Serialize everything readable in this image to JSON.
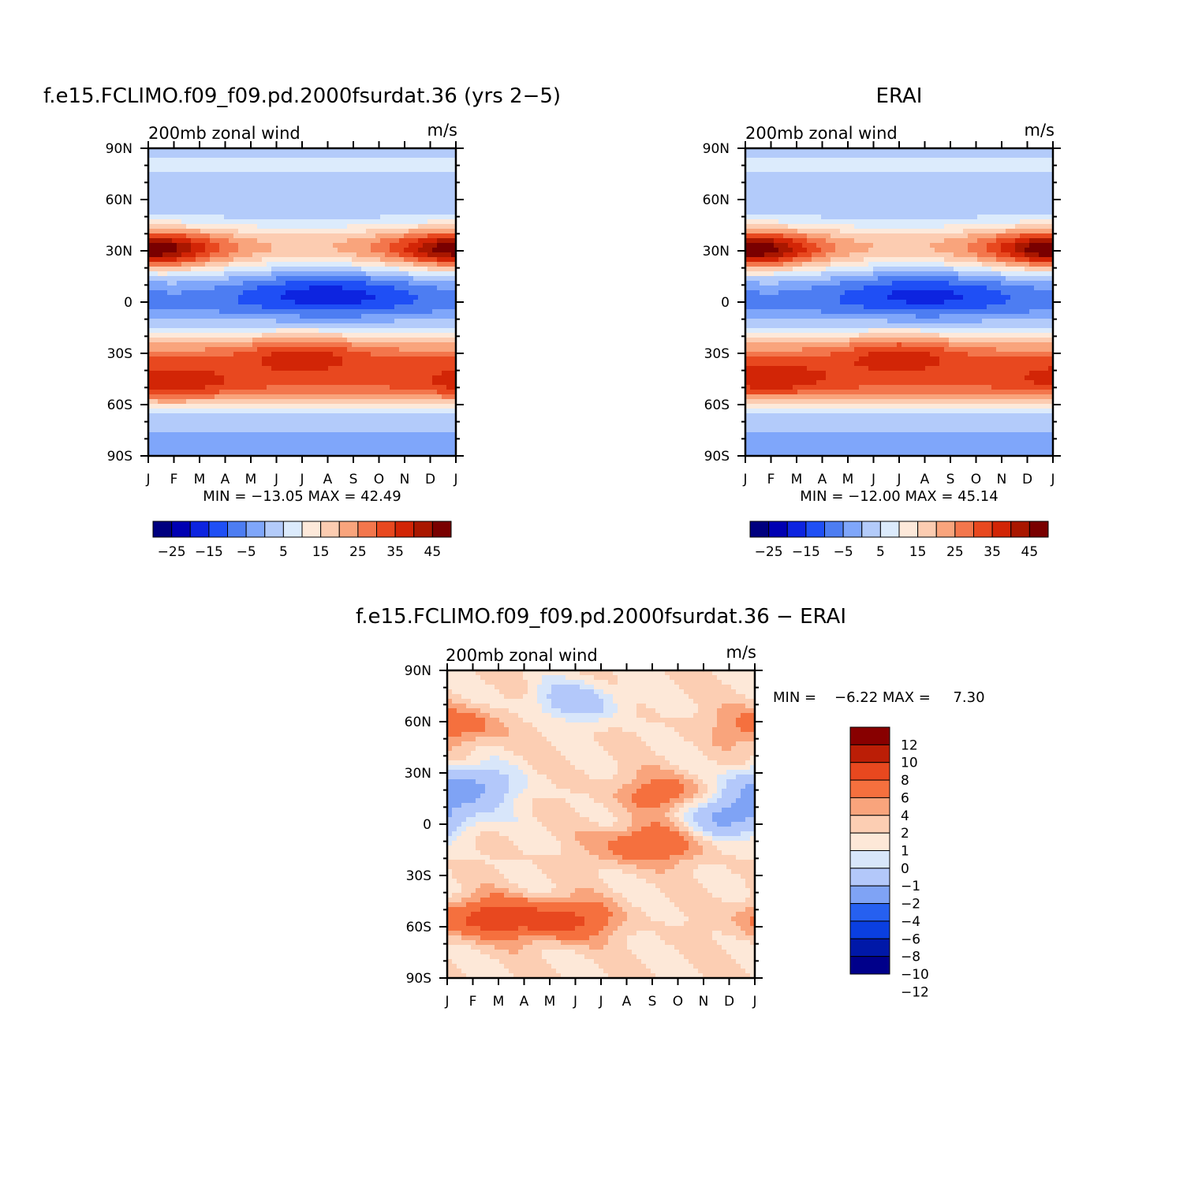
{
  "colors": {
    "abs_fill": [
      "#00007f",
      "#0000b2",
      "#0d24e0",
      "#1f4ff5",
      "#4d7df2",
      "#7fa6fa",
      "#b3cbfa",
      "#dcebfc",
      "#fde9da",
      "#fcccb1",
      "#f9a47c",
      "#f3764c",
      "#e8481f",
      "#d22506",
      "#a91700",
      "#790000"
    ],
    "diff_fill": [
      "#00008a",
      "#0018a8",
      "#0a3fe0",
      "#2660f0",
      "#7fa3f5",
      "#b3c8fa",
      "#d8e6fa",
      "#fde8d8",
      "#fcceb3",
      "#f9a47c",
      "#f5703e",
      "#e8481f",
      "#bb1e06",
      "#880000"
    ]
  },
  "panels": [
    {
      "id": "model",
      "title": "f.e15.FCLIMO.f09_f09.pd.2000fsurdat.36 (yrs 2−5)",
      "left_label": "200mb zonal wind",
      "right_label": "m/s",
      "stats": "MIN = −13.05 MAX =   42.49",
      "colorbar_labels": [
        "−25",
        "−15",
        "−5",
        "5",
        "15",
        "25",
        "35",
        "45"
      ]
    },
    {
      "id": "obs",
      "title": "ERAI",
      "left_label": "200mb zonal wind",
      "right_label": "m/s",
      "stats": "MIN = −12.00 MAX =   45.14",
      "colorbar_labels": [
        "−25",
        "−15",
        "−5",
        "5",
        "15",
        "25",
        "35",
        "45"
      ]
    },
    {
      "id": "diff",
      "title": "f.e15.FCLIMO.f09_f09.pd.2000fsurdat.36 − ERAI",
      "left_label": "200mb zonal wind",
      "right_label": "m/s",
      "stats": "MIN =    −6.22 MAX =     7.30",
      "colorbar_labels": [
        "12",
        "10",
        "8",
        "6",
        "4",
        "2",
        "1",
        "0",
        "−1",
        "−2",
        "−4",
        "−6",
        "−8",
        "−10",
        "−12"
      ]
    }
  ],
  "chart_data": [
    {
      "type": "heatmap",
      "title": "f.e15.FCLIMO.f09_f09.pd.2000fsurdat.36 (yrs 2−5)",
      "subtitle": "200mb zonal wind",
      "units": "m/s",
      "x_ticks": [
        "J",
        "F",
        "M",
        "A",
        "M",
        "J",
        "J",
        "A",
        "S",
        "O",
        "N",
        "D",
        "J"
      ],
      "y_ticks": [
        "90N",
        "60N",
        "30N",
        "0",
        "30S",
        "60S",
        "90S"
      ],
      "contour_levels": [
        -25,
        -20,
        -15,
        -10,
        -5,
        0,
        5,
        10,
        15,
        20,
        25,
        30,
        35,
        40,
        45
      ],
      "min": -13.05,
      "max": 42.49,
      "jets": [
        {
          "month": 0.3,
          "lat": 30,
          "speed": 40
        },
        {
          "month": 12.0,
          "lat": 31,
          "speed": 32
        },
        {
          "month": 6.0,
          "lat": -28,
          "speed": 37
        },
        {
          "month": 1.0,
          "lat": -50,
          "speed": 28
        }
      ],
      "equatorial_easterlies": {
        "month": 7.0,
        "lat": 6,
        "speed": -12
      },
      "grid": false
    },
    {
      "type": "heatmap",
      "title": "ERAI",
      "subtitle": "200mb zonal wind",
      "units": "m/s",
      "x_ticks": [
        "J",
        "F",
        "M",
        "A",
        "M",
        "J",
        "J",
        "A",
        "S",
        "O",
        "N",
        "D",
        "J"
      ],
      "y_ticks": [
        "90N",
        "60N",
        "30N",
        "0",
        "30S",
        "60S",
        "90S"
      ],
      "contour_levels": [
        -25,
        -20,
        -15,
        -10,
        -5,
        0,
        5,
        10,
        15,
        20,
        25,
        30,
        35,
        40,
        45
      ],
      "min": -12.0,
      "max": 45.14,
      "jets": [
        {
          "month": 0.5,
          "lat": 30,
          "speed": 42
        },
        {
          "month": 11.8,
          "lat": 31,
          "speed": 36
        },
        {
          "month": 6.0,
          "lat": -28,
          "speed": 38
        },
        {
          "month": 1.0,
          "lat": -47,
          "speed": 25
        }
      ],
      "equatorial_easterlies": {
        "month": 7.0,
        "lat": 6,
        "speed": -11
      },
      "grid": false
    },
    {
      "type": "heatmap",
      "title": "f.e15.FCLIMO.f09_f09.pd.2000fsurdat.36 − ERAI",
      "subtitle": "200mb zonal wind",
      "units": "m/s",
      "x_ticks": [
        "J",
        "F",
        "M",
        "A",
        "M",
        "J",
        "J",
        "A",
        "S",
        "O",
        "N",
        "D",
        "J"
      ],
      "y_ticks": [
        "90N",
        "60N",
        "30N",
        "0",
        "30S",
        "60S",
        "90S"
      ],
      "contour_levels": [
        -12,
        -10,
        -8,
        -6,
        -4,
        -2,
        -1,
        0,
        1,
        2,
        4,
        6,
        8,
        10,
        12
      ],
      "min": -6.22,
      "max": 7.3,
      "features": [
        {
          "month": 1.5,
          "lat": -55,
          "value": 5
        },
        {
          "month": 4.5,
          "lat": -56,
          "value": 5
        },
        {
          "month": 0.6,
          "lat": 22,
          "value": -5
        },
        {
          "month": 11.3,
          "lat": 5,
          "value": -5
        },
        {
          "month": 7.8,
          "lat": -12,
          "value": 4
        },
        {
          "month": 8.5,
          "lat": 18,
          "value": 3
        },
        {
          "month": 5.0,
          "lat": 72,
          "value": -3
        },
        {
          "month": 0.4,
          "lat": 58,
          "value": 3
        }
      ],
      "grid": false
    }
  ]
}
